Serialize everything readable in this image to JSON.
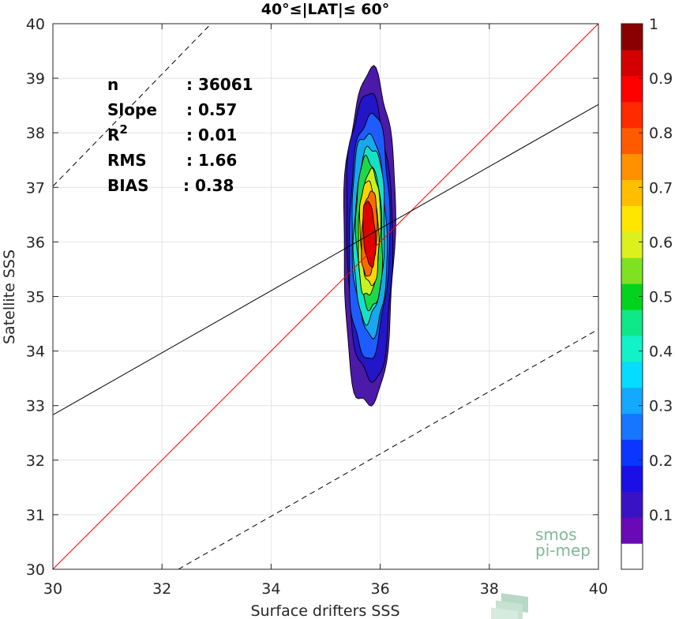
{
  "chart_data": {
    "type": "contour",
    "title": "40°≤|LAT|≤ 60°",
    "xlabel": "Surface drifters SSS",
    "ylabel": "Satellite SSS",
    "xlim": [
      30,
      40
    ],
    "ylim": [
      30,
      40
    ],
    "xticks": [
      "30",
      "32",
      "34",
      "36",
      "38",
      "40"
    ],
    "yticks": [
      "30",
      "31",
      "32",
      "33",
      "34",
      "35",
      "36",
      "37",
      "38",
      "39",
      "40"
    ],
    "grid": true,
    "stats": [
      {
        "key": "n",
        "value": ": 36061"
      },
      {
        "key": "Slope",
        "value": ": 0.57"
      },
      {
        "key": "R",
        "sup": "2",
        "value": ": 0.01"
      },
      {
        "key": "RMS",
        "value": ": 1.66"
      },
      {
        "key": "BIAS",
        "value": ": 0.38"
      }
    ],
    "lines": [
      {
        "id": "one-to-one",
        "color": "#ff0000",
        "dash": false,
        "points": [
          [
            30,
            30
          ],
          [
            40,
            40
          ]
        ]
      },
      {
        "id": "regression",
        "color": "#000000",
        "dash": false,
        "points": [
          [
            30,
            32.83
          ],
          [
            40,
            38.52
          ]
        ]
      },
      {
        "id": "upper-bound",
        "color": "#000000",
        "dash": true,
        "points": [
          [
            30,
            37.02
          ],
          [
            32.9,
            40
          ]
        ]
      },
      {
        "id": "lower-bound",
        "color": "#000000",
        "dash": true,
        "points": [
          [
            32.3,
            30
          ],
          [
            40,
            34.4
          ]
        ]
      }
    ],
    "density": {
      "cx": 35.8,
      "cy": 36.15,
      "levels": [
        {
          "level": 0.05,
          "color": "#4b1aa8",
          "rx": 0.47,
          "ry": 2.95
        },
        {
          "level": 0.1,
          "color": "#2216c8",
          "rx": 0.42,
          "ry": 2.55
        },
        {
          "level": 0.2,
          "color": "#1f5cff",
          "rx": 0.37,
          "ry": 2.2
        },
        {
          "level": 0.3,
          "color": "#17a8ee",
          "rx": 0.32,
          "ry": 1.85
        },
        {
          "level": 0.4,
          "color": "#16e0c8",
          "rx": 0.28,
          "ry": 1.6
        },
        {
          "level": 0.5,
          "color": "#1fd84a",
          "rx": 0.24,
          "ry": 1.38
        },
        {
          "level": 0.6,
          "color": "#c8f21f",
          "rx": 0.2,
          "ry": 1.15
        },
        {
          "level": 0.7,
          "color": "#ffd200",
          "rx": 0.17,
          "ry": 0.95
        },
        {
          "level": 0.8,
          "color": "#ff6a00",
          "rx": 0.14,
          "ry": 0.78
        },
        {
          "level": 0.9,
          "color": "#e10000",
          "rx": 0.11,
          "ry": 0.6
        }
      ]
    },
    "colorbar": {
      "ticks": [
        "0.1",
        "0.2",
        "0.3",
        "0.4",
        "0.5",
        "0.6",
        "0.7",
        "0.8",
        "0.9",
        "1"
      ],
      "colors": [
        "#ffffff",
        "#6a0ab6",
        "#3a12c6",
        "#1a10e6",
        "#0a36ff",
        "#1676ff",
        "#14a8ff",
        "#06dcff",
        "#12f2c8",
        "#0ee886",
        "#04d31e",
        "#7ee222",
        "#dcf01e",
        "#ffe600",
        "#ffbe00",
        "#ff9000",
        "#ff5a00",
        "#ff2a00",
        "#ff0000",
        "#d20000",
        "#8a0000"
      ]
    },
    "watermark": {
      "line1": "smos",
      "line2": "pi-mep",
      "color": "#7fb89a"
    }
  }
}
